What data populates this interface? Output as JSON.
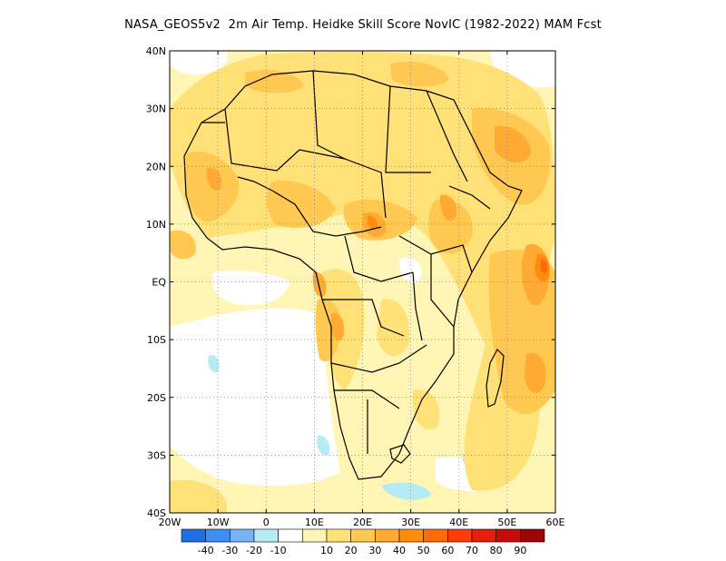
{
  "title": "NASA_GEOS5v2  2m Air Temp. Heidke Skill Score NovIC (1982-2022) MAM Fcst",
  "map": {
    "lat_labels": [
      "40N",
      "30N",
      "20N",
      "10N",
      "EQ",
      "10S",
      "20S",
      "30S",
      "40S"
    ],
    "lat_values": [
      40,
      30,
      20,
      10,
      0,
      -10,
      -20,
      -30,
      -40
    ],
    "lon_labels": [
      "20W",
      "10W",
      "0",
      "10E",
      "20E",
      "30E",
      "40E",
      "50E",
      "60E"
    ],
    "lon_values": [
      -20,
      -10,
      0,
      10,
      20,
      30,
      40,
      50,
      60
    ],
    "lon_range": [
      -20,
      60
    ],
    "lat_range": [
      -40,
      40
    ],
    "grid": "dotted"
  },
  "colorbar": {
    "colors": [
      "#1e6fe6",
      "#3c8ff0",
      "#78b4f5",
      "#b4ebf5",
      "#ffffff",
      "#fff5b4",
      "#ffe178",
      "#ffc850",
      "#ffaa32",
      "#ff8c0f",
      "#ff6a0a",
      "#ff3c0a",
      "#e61e0a",
      "#c80a0a",
      "#9b0505"
    ],
    "labels": [
      "-40",
      "-30",
      "-20",
      "-10",
      "10",
      "20",
      "30",
      "40",
      "50",
      "60",
      "70",
      "80",
      "90"
    ]
  }
}
